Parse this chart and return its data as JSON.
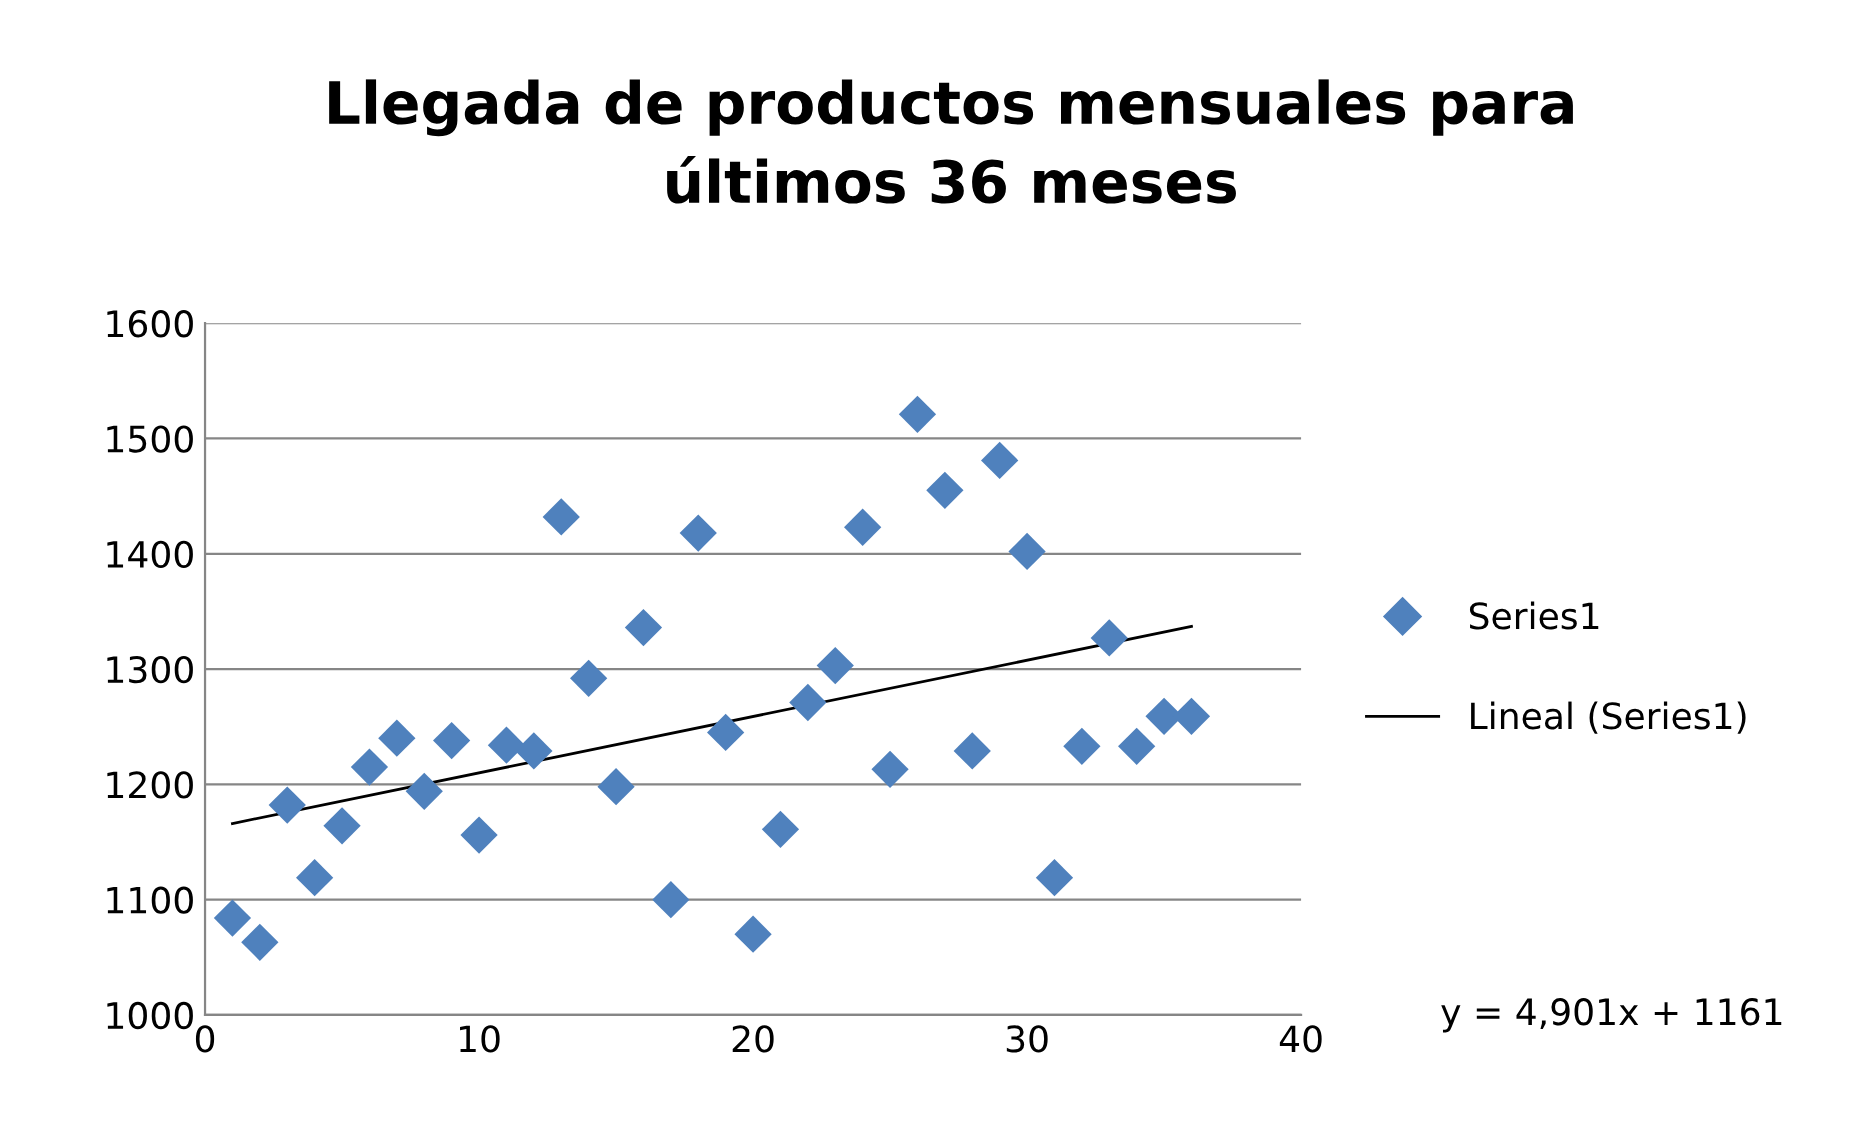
{
  "chart_data": {
    "type": "scatter",
    "title": "Llegada de productos mensuales para\núltimos 36 meses",
    "xlim": [
      0,
      40
    ],
    "xticks": [
      0,
      10,
      20,
      30,
      40
    ],
    "ylim": [
      1000,
      1600
    ],
    "yticks": [
      1000,
      1100,
      1200,
      1300,
      1400,
      1500,
      1600
    ],
    "grid": "y",
    "legend": "right",
    "annotations": [
      "y = 4,901x + 1161"
    ],
    "series": [
      {
        "name": "Series1",
        "color": "#4f81bd",
        "marker": "diamond",
        "x": [
          1,
          2,
          3,
          4,
          5,
          6,
          7,
          8,
          9,
          10,
          11,
          12,
          13,
          14,
          15,
          16,
          17,
          18,
          19,
          20,
          21,
          22,
          23,
          24,
          25,
          26,
          27,
          28,
          29,
          30,
          31,
          32,
          33,
          34,
          35,
          36
        ],
        "values": [
          1084,
          1063,
          1182,
          1119,
          1164,
          1215,
          1240,
          1194,
          1238,
          1156,
          1234,
          1229,
          1432,
          1292,
          1198,
          1336,
          1100,
          1418,
          1245,
          1070,
          1161,
          1271,
          1303,
          1423,
          1213,
          1521,
          1455,
          1229,
          1481,
          1402,
          1119,
          1233,
          1327,
          1233,
          1259,
          1259
        ]
      },
      {
        "name": "Lineal (Series1)",
        "color": "#000000",
        "type": "line",
        "x": [
          1,
          36
        ],
        "values": [
          1166,
          1337
        ]
      }
    ]
  }
}
